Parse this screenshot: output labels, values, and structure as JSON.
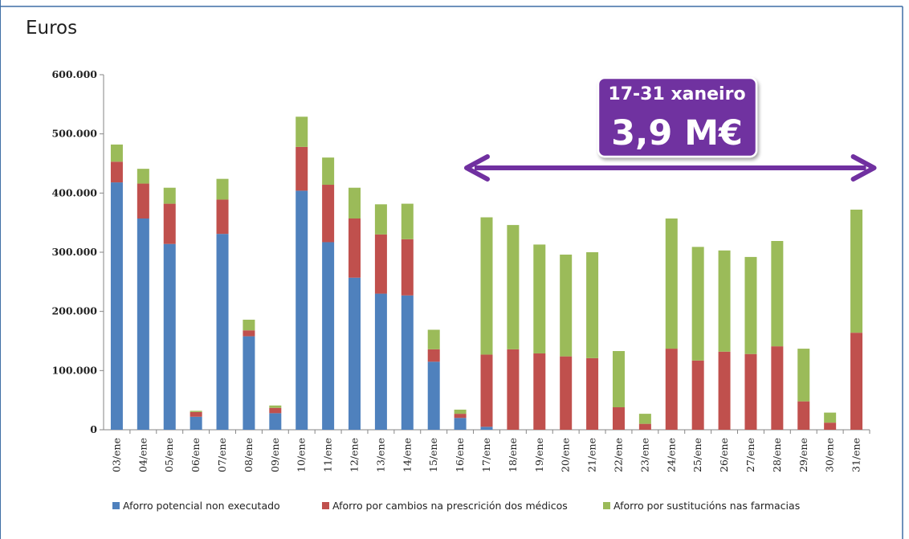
{
  "chart_data": {
    "type": "bar",
    "stacked": true,
    "ylabel": "Euros",
    "ylim": [
      0,
      600000
    ],
    "yticks": [
      "0",
      "100.000",
      "200.000",
      "300.000",
      "400.000",
      "500.000",
      "600.000"
    ],
    "grid": false,
    "legend_position": "bottom",
    "categories": [
      "03/ene",
      "04/ene",
      "05/ene",
      "06/ene",
      "07/ene",
      "08/ene",
      "09/ene",
      "10/ene",
      "11/ene",
      "12/ene",
      "13/ene",
      "14/ene",
      "15/ene",
      "16/ene",
      "17/ene",
      "18/ene",
      "19/ene",
      "20/ene",
      "21/ene",
      "22/ene",
      "23/ene",
      "24/ene",
      "25/ene",
      "26/ene",
      "27/ene",
      "28/ene",
      "29/ene",
      "30/ene",
      "31/ene"
    ],
    "series": [
      {
        "name": "Aforro potencial non executado",
        "color": "#4f81bd",
        "values": [
          418000,
          357000,
          314000,
          22000,
          331000,
          158000,
          28000,
          404000,
          317000,
          257000,
          230000,
          227000,
          115000,
          20000,
          5000,
          0,
          0,
          0,
          0,
          0,
          0,
          0,
          0,
          0,
          0,
          0,
          0,
          0,
          0
        ]
      },
      {
        "name": "Aforro por cambios na prescrición dos médicos",
        "color": "#c0504d",
        "values": [
          35000,
          59000,
          68000,
          8000,
          58000,
          10000,
          9000,
          74000,
          97000,
          100000,
          100000,
          95000,
          21000,
          7000,
          122000,
          136000,
          129000,
          124000,
          121000,
          38000,
          10000,
          137000,
          117000,
          132000,
          128000,
          141000,
          48000,
          12000,
          164000
        ]
      },
      {
        "name": "Aforro por sustitucións nas farmacias",
        "color": "#9bbb59",
        "values": [
          29000,
          25000,
          27000,
          2000,
          35000,
          18000,
          4000,
          51000,
          46000,
          52000,
          51000,
          60000,
          33000,
          7000,
          232000,
          210000,
          184000,
          172000,
          179000,
          95000,
          17000,
          220000,
          192000,
          171000,
          164000,
          178000,
          89000,
          17000,
          208000
        ]
      }
    ],
    "annotation": {
      "subtitle": "17-31 xaneiro",
      "value": "3,9  M€",
      "color": "#7030a0",
      "arrow_from": "17/ene",
      "arrow_to": "31/ene"
    }
  }
}
